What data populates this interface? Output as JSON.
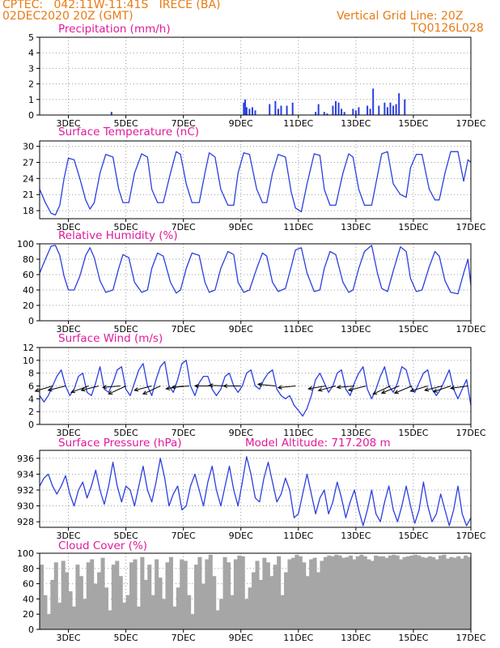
{
  "header": {
    "station": "CPTEC:   042:11W-11:41S   IRECE (BA)",
    "run": "02DEC2020 20Z (GMT)",
    "grid_note": "Vertical Grid Line: 20Z",
    "model": "TQ0126L028"
  },
  "colors": {
    "series": "#2a3fe0",
    "cloud": "#a6a6a6",
    "grid": "#9a9a9a",
    "title": "#e01a9a",
    "header": "#e87a14",
    "arrow": "#000000"
  },
  "x_axis": {
    "ticks": [
      "3DEC",
      "5DEC",
      "7DEC",
      "9DEC",
      "11DEC",
      "13DEC",
      "15DEC",
      "17DEC"
    ],
    "tick_days": [
      3,
      5,
      7,
      9,
      11,
      13,
      15,
      17
    ],
    "xlim": [
      2.0,
      17.0
    ]
  },
  "panels": {
    "precip": {
      "title": "Precipitation (mm/h)",
      "yticks": [
        "0",
        "1",
        "2",
        "3",
        "4",
        "5"
      ]
    },
    "temp": {
      "title": "Surface Temperature (nC)",
      "yticks": [
        "18",
        "21",
        "24",
        "27",
        "30"
      ]
    },
    "rh": {
      "title": "Relative Humidity (%)",
      "yticks": [
        "0",
        "20",
        "40",
        "60",
        "80",
        "100"
      ]
    },
    "wind": {
      "title": "Surface Wind (m/s)",
      "yticks": [
        "0",
        "2",
        "4",
        "6",
        "8",
        "10",
        "12"
      ]
    },
    "pressure": {
      "title": "Surface Pressure (hPa)",
      "subtitle": "Model Altitude: 717.208 m",
      "yticks": [
        "928",
        "930",
        "932",
        "934",
        "936"
      ]
    },
    "cloud": {
      "title": "Cloud Cover (%)",
      "yticks": [
        "0",
        "20",
        "40",
        "60",
        "80",
        "100"
      ]
    }
  },
  "chart_data": [
    {
      "type": "bar",
      "name": "precip",
      "ylim": [
        0,
        5
      ],
      "x": [
        4.5,
        9.1,
        9.15,
        9.2,
        9.3,
        9.4,
        9.5,
        10.0,
        10.2,
        10.3,
        10.4,
        10.6,
        10.8,
        11.6,
        11.7,
        11.9,
        12.0,
        12.2,
        12.3,
        12.4,
        12.5,
        12.6,
        12.9,
        13.0,
        13.1,
        13.4,
        13.5,
        13.6,
        13.8,
        14.0,
        14.1,
        14.2,
        14.3,
        14.4,
        14.5,
        14.7
      ],
      "values": [
        0.2,
        0.8,
        1.0,
        0.5,
        0.4,
        0.5,
        0.3,
        0.7,
        0.9,
        0.4,
        0.6,
        0.6,
        0.8,
        0.2,
        0.7,
        0.2,
        0.1,
        0.6,
        0.9,
        0.8,
        0.4,
        0.2,
        0.4,
        0.3,
        0.5,
        0.6,
        0.4,
        1.7,
        0.6,
        0.8,
        0.5,
        0.8,
        0.6,
        0.7,
        1.4,
        1.0
      ]
    },
    {
      "type": "line",
      "name": "temp",
      "ylim": [
        16.5,
        31
      ],
      "x": [
        2.0,
        2.2,
        2.4,
        2.55,
        2.7,
        2.85,
        3.0,
        3.2,
        3.4,
        3.6,
        3.75,
        3.9,
        4.1,
        4.3,
        4.55,
        4.75,
        4.9,
        5.1,
        5.3,
        5.55,
        5.75,
        5.9,
        6.1,
        6.3,
        6.55,
        6.75,
        6.9,
        7.1,
        7.3,
        7.55,
        7.75,
        7.9,
        8.1,
        8.3,
        8.55,
        8.75,
        8.9,
        9.1,
        9.3,
        9.55,
        9.75,
        9.9,
        10.1,
        10.3,
        10.55,
        10.75,
        10.9,
        11.1,
        11.3,
        11.55,
        11.75,
        11.9,
        12.1,
        12.3,
        12.55,
        12.75,
        12.9,
        13.1,
        13.3,
        13.55,
        13.75,
        13.9,
        14.1,
        14.3,
        14.55,
        14.75,
        14.9,
        15.1,
        15.3,
        15.55,
        15.75,
        15.9,
        16.1,
        16.3,
        16.55,
        16.75,
        16.9,
        17.0
      ],
      "values": [
        22.0,
        19.5,
        17.5,
        17.2,
        19.0,
        24.0,
        27.8,
        27.5,
        24.0,
        20.0,
        18.3,
        19.5,
        25.0,
        28.5,
        28.0,
        22.0,
        19.5,
        19.5,
        25.0,
        28.6,
        28.0,
        22.0,
        19.5,
        19.5,
        25.0,
        29.0,
        28.5,
        23.0,
        19.5,
        19.5,
        25.0,
        28.8,
        28.0,
        22.0,
        19.0,
        19.0,
        25.0,
        28.8,
        28.5,
        22.0,
        19.5,
        19.5,
        25.0,
        28.5,
        28.0,
        21.5,
        18.5,
        17.8,
        23.0,
        28.6,
        28.3,
        22.0,
        19.0,
        19.0,
        25.0,
        28.6,
        28.0,
        22.0,
        19.0,
        19.0,
        24.5,
        28.6,
        29.0,
        23.0,
        21.0,
        20.5,
        26.0,
        28.5,
        28.5,
        22.0,
        20.0,
        20.0,
        25.0,
        29.0,
        29.0,
        23.5,
        27.5,
        27.0
      ]
    },
    {
      "type": "line",
      "name": "rh",
      "ylim": [
        0,
        100
      ],
      "x": [
        2.0,
        2.2,
        2.4,
        2.55,
        2.7,
        2.85,
        3.0,
        3.2,
        3.4,
        3.6,
        3.75,
        3.9,
        4.1,
        4.3,
        4.55,
        4.75,
        4.9,
        5.1,
        5.3,
        5.55,
        5.75,
        5.9,
        6.1,
        6.3,
        6.55,
        6.75,
        6.9,
        7.1,
        7.3,
        7.55,
        7.75,
        7.9,
        8.1,
        8.3,
        8.55,
        8.75,
        8.9,
        9.1,
        9.3,
        9.55,
        9.75,
        9.9,
        10.1,
        10.3,
        10.55,
        10.75,
        10.9,
        11.1,
        11.3,
        11.55,
        11.75,
        11.9,
        12.1,
        12.3,
        12.55,
        12.75,
        12.9,
        13.1,
        13.3,
        13.55,
        13.75,
        13.9,
        14.1,
        14.3,
        14.55,
        14.75,
        14.9,
        15.1,
        15.3,
        15.55,
        15.75,
        15.9,
        16.1,
        16.3,
        16.55,
        16.75,
        16.9,
        17.0
      ],
      "values": [
        62.0,
        80.0,
        97.0,
        98.0,
        85.0,
        58.0,
        40.0,
        40.0,
        58.0,
        85.0,
        95.0,
        82.0,
        52.0,
        37.0,
        40.0,
        68.0,
        86.0,
        82.0,
        50.0,
        37.0,
        40.0,
        68.0,
        88.0,
        84.0,
        50.0,
        36.0,
        40.0,
        68.0,
        88.0,
        85.0,
        50.0,
        37.0,
        40.0,
        68.0,
        90.0,
        86.0,
        50.0,
        37.0,
        40.0,
        68.0,
        88.0,
        84.0,
        50.0,
        38.0,
        42.0,
        70.0,
        92.0,
        95.0,
        62.0,
        38.0,
        40.0,
        68.0,
        90.0,
        86.0,
        50.0,
        37.0,
        40.0,
        68.0,
        90.0,
        98.0,
        62.0,
        42.0,
        38.0,
        65.0,
        96.0,
        90.0,
        55.0,
        38.0,
        40.0,
        70.0,
        90.0,
        84.0,
        52.0,
        37.0,
        35.0,
        62.0,
        80.0,
        46.0
      ]
    },
    {
      "type": "line",
      "name": "wind",
      "ylim": [
        0,
        12
      ],
      "x": [
        2.0,
        2.15,
        2.3,
        2.45,
        2.6,
        2.75,
        2.9,
        3.05,
        3.2,
        3.35,
        3.5,
        3.65,
        3.8,
        3.95,
        4.1,
        4.25,
        4.4,
        4.55,
        4.7,
        4.85,
        5.0,
        5.15,
        5.3,
        5.45,
        5.6,
        5.75,
        5.9,
        6.05,
        6.2,
        6.35,
        6.5,
        6.65,
        6.8,
        6.95,
        7.1,
        7.25,
        7.4,
        7.55,
        7.7,
        7.85,
        8.0,
        8.15,
        8.3,
        8.45,
        8.6,
        8.75,
        8.9,
        9.05,
        9.2,
        9.35,
        9.5,
        9.65,
        9.8,
        9.95,
        10.1,
        10.25,
        10.4,
        10.55,
        10.7,
        10.85,
        11.0,
        11.15,
        11.3,
        11.45,
        11.6,
        11.75,
        11.9,
        12.05,
        12.2,
        12.35,
        12.5,
        12.65,
        12.8,
        12.95,
        13.1,
        13.25,
        13.4,
        13.55,
        13.7,
        13.85,
        14.0,
        14.15,
        14.3,
        14.45,
        14.6,
        14.75,
        14.9,
        15.05,
        15.2,
        15.35,
        15.5,
        15.65,
        15.8,
        15.95,
        16.1,
        16.25,
        16.4,
        16.55,
        16.7,
        16.85,
        17.0
      ],
      "values": [
        4.5,
        3.5,
        4.5,
        6.0,
        7.5,
        8.5,
        6.0,
        4.5,
        5.5,
        7.5,
        8.0,
        5.0,
        4.5,
        6.5,
        9.0,
        5.5,
        5.0,
        6.5,
        8.5,
        9.0,
        5.5,
        4.5,
        6.5,
        8.5,
        9.5,
        6.0,
        4.5,
        7.0,
        9.0,
        9.8,
        6.0,
        5.0,
        7.0,
        9.5,
        10.0,
        6.0,
        4.5,
        6.5,
        7.5,
        7.5,
        5.5,
        4.5,
        5.5,
        7.5,
        8.0,
        6.0,
        5.0,
        6.0,
        8.0,
        8.5,
        6.0,
        5.5,
        7.0,
        8.0,
        8.5,
        5.5,
        4.5,
        4.0,
        4.5,
        3.0,
        2.2,
        1.3,
        2.5,
        4.5,
        7.0,
        8.0,
        6.5,
        5.0,
        6.0,
        8.0,
        8.5,
        5.5,
        4.5,
        6.5,
        8.0,
        9.0,
        5.5,
        4.0,
        5.5,
        7.5,
        9.0,
        6.0,
        5.0,
        6.5,
        9.0,
        8.5,
        6.0,
        5.0,
        6.5,
        8.0,
        8.5,
        5.5,
        4.5,
        5.5,
        7.0,
        8.5,
        5.5,
        4.0,
        5.5,
        7.0,
        3.0
      ]
    },
    {
      "type": "line",
      "name": "pressure",
      "ylim": [
        927.3,
        937.0
      ],
      "x": [
        2.0,
        2.15,
        2.3,
        2.45,
        2.6,
        2.75,
        2.9,
        3.05,
        3.2,
        3.35,
        3.5,
        3.65,
        3.8,
        3.95,
        4.1,
        4.25,
        4.4,
        4.55,
        4.7,
        4.85,
        5.0,
        5.15,
        5.3,
        5.45,
        5.6,
        5.75,
        5.9,
        6.05,
        6.2,
        6.35,
        6.5,
        6.65,
        6.8,
        6.95,
        7.1,
        7.25,
        7.4,
        7.55,
        7.7,
        7.85,
        8.0,
        8.15,
        8.3,
        8.45,
        8.6,
        8.75,
        8.9,
        9.05,
        9.2,
        9.35,
        9.5,
        9.65,
        9.8,
        9.95,
        10.1,
        10.25,
        10.4,
        10.55,
        10.7,
        10.85,
        11.0,
        11.15,
        11.3,
        11.45,
        11.6,
        11.75,
        11.9,
        12.05,
        12.2,
        12.35,
        12.5,
        12.65,
        12.8,
        12.95,
        13.1,
        13.25,
        13.4,
        13.55,
        13.7,
        13.85,
        14.0,
        14.15,
        14.3,
        14.45,
        14.6,
        14.75,
        14.9,
        15.05,
        15.2,
        15.35,
        15.5,
        15.65,
        15.8,
        15.95,
        16.1,
        16.25,
        16.4,
        16.55,
        16.7,
        16.85,
        17.0
      ],
      "values": [
        932.5,
        933.5,
        934.0,
        932.5,
        931.5,
        932.5,
        933.8,
        931.5,
        930.0,
        932.0,
        933.0,
        931.0,
        932.5,
        934.5,
        932.0,
        930.2,
        932.5,
        935.5,
        932.5,
        930.5,
        932.5,
        932.0,
        930.0,
        932.5,
        935.0,
        932.0,
        930.5,
        933.0,
        936.0,
        933.5,
        930.0,
        931.5,
        932.5,
        929.5,
        930.0,
        932.5,
        934.0,
        932.0,
        930.0,
        933.0,
        935.0,
        932.0,
        930.0,
        932.5,
        935.0,
        932.0,
        930.0,
        933.0,
        936.2,
        934.0,
        931.0,
        930.5,
        933.5,
        935.5,
        933.0,
        930.5,
        931.5,
        933.5,
        932.0,
        928.5,
        929.0,
        931.5,
        934.0,
        931.5,
        929.0,
        931.0,
        932.0,
        929.0,
        930.5,
        933.0,
        931.0,
        928.5,
        930.5,
        932.0,
        929.5,
        927.5,
        929.5,
        932.0,
        929.0,
        928.0,
        930.5,
        932.5,
        929.5,
        928.0,
        930.0,
        932.5,
        930.0,
        927.8,
        929.5,
        933.0,
        930.0,
        928.0,
        929.0,
        931.5,
        929.5,
        927.5,
        929.5,
        932.5,
        929.0,
        927.5,
        928.5
      ]
    },
    {
      "type": "bar",
      "name": "cloud",
      "ylim": [
        0,
        100
      ],
      "x": [
        2.0,
        2.125,
        2.25,
        2.375,
        2.5,
        2.625,
        2.75,
        2.875,
        3.0,
        3.125,
        3.25,
        3.375,
        3.5,
        3.625,
        3.75,
        3.875,
        4.0,
        4.125,
        4.25,
        4.375,
        4.5,
        4.625,
        4.75,
        4.875,
        5.0,
        5.125,
        5.25,
        5.375,
        5.5,
        5.625,
        5.75,
        5.875,
        6.0,
        6.125,
        6.25,
        6.375,
        6.5,
        6.625,
        6.75,
        6.875,
        7.0,
        7.125,
        7.25,
        7.375,
        7.5,
        7.625,
        7.75,
        7.875,
        8.0,
        8.125,
        8.25,
        8.375,
        8.5,
        8.625,
        8.75,
        8.875,
        9.0,
        9.125,
        9.25,
        9.375,
        9.5,
        9.625,
        9.75,
        9.875,
        10.0,
        10.125,
        10.25,
        10.375,
        10.5,
        10.625,
        10.75,
        10.875,
        11.0,
        11.125,
        11.25,
        11.375,
        11.5,
        11.625,
        11.75,
        11.875,
        12.0,
        12.125,
        12.25,
        12.375,
        12.5,
        12.625,
        12.75,
        12.875,
        13.0,
        13.125,
        13.25,
        13.375,
        13.5,
        13.625,
        13.75,
        13.875,
        14.0,
        14.125,
        14.25,
        14.375,
        14.5,
        14.625,
        14.75,
        14.875,
        15.0,
        15.125,
        15.25,
        15.375,
        15.5,
        15.625,
        15.75,
        15.875,
        16.0,
        16.125,
        16.25,
        16.375,
        16.5,
        16.625,
        16.75,
        16.875
      ],
      "values": [
        85,
        45,
        20,
        65,
        88,
        35,
        90,
        75,
        50,
        30,
        85,
        70,
        40,
        88,
        92,
        60,
        75,
        94,
        55,
        25,
        85,
        90,
        70,
        35,
        45,
        88,
        92,
        30,
        95,
        65,
        85,
        45,
        92,
        68,
        40,
        88,
        95,
        30,
        55,
        92,
        90,
        45,
        20,
        85,
        95,
        60,
        92,
        98,
        70,
        25,
        40,
        95,
        88,
        45,
        92,
        97,
        96,
        40,
        55,
        75,
        90,
        65,
        94,
        88,
        70,
        85,
        96,
        45,
        75,
        92,
        94,
        98,
        96,
        88,
        70,
        92,
        94,
        75,
        90,
        95,
        97,
        96,
        98,
        97,
        94,
        95,
        97,
        92,
        96,
        98,
        96,
        92,
        90,
        97,
        96,
        96,
        94,
        97,
        98,
        97,
        92,
        95,
        96,
        97,
        98,
        97,
        95,
        94,
        96,
        95,
        92,
        97,
        98,
        93,
        95,
        94,
        96,
        93,
        97,
        95
      ]
    }
  ],
  "wind_vectors": [
    {
      "x": 2.45,
      "u": -6,
      "v": -1.8
    },
    {
      "x": 2.9,
      "u": -6,
      "v": -1.5
    },
    {
      "x": 3.7,
      "u": -6,
      "v": -2.2
    },
    {
      "x": 4.05,
      "u": -6,
      "v": -1.5
    },
    {
      "x": 4.8,
      "u": -6,
      "v": -0.5
    },
    {
      "x": 5.0,
      "u": -6,
      "v": -2.8
    },
    {
      "x": 5.9,
      "u": -6,
      "v": -1.5
    },
    {
      "x": 6.2,
      "u": -6,
      "v": -2.8
    },
    {
      "x": 7.0,
      "u": -6,
      "v": -1.0
    },
    {
      "x": 7.2,
      "u": -6,
      "v": -0.5
    },
    {
      "x": 8.0,
      "u": -6,
      "v": 0.0
    },
    {
      "x": 8.5,
      "u": -6,
      "v": 0.2
    },
    {
      "x": 9.0,
      "u": -6,
      "v": 0.0
    },
    {
      "x": 10.2,
      "u": -6,
      "v": 0.6
    },
    {
      "x": 10.9,
      "u": -6,
      "v": -0.6
    },
    {
      "x": 11.95,
      "u": -6,
      "v": -1.0
    },
    {
      "x": 12.3,
      "u": -6,
      "v": -1.6
    },
    {
      "x": 12.95,
      "u": -6,
      "v": -0.5
    },
    {
      "x": 13.35,
      "u": -6,
      "v": -1.5
    },
    {
      "x": 14.2,
      "u": -6,
      "v": -2.8
    },
    {
      "x": 14.5,
      "u": -6,
      "v": -2.5
    },
    {
      "x": 14.95,
      "u": -6,
      "v": -2.5
    },
    {
      "x": 15.5,
      "u": -6,
      "v": -1.8
    },
    {
      "x": 16.0,
      "u": -6,
      "v": -1.5
    },
    {
      "x": 16.3,
      "u": -6,
      "v": -2.0
    },
    {
      "x": 16.9,
      "u": -6,
      "v": -0.8
    }
  ]
}
